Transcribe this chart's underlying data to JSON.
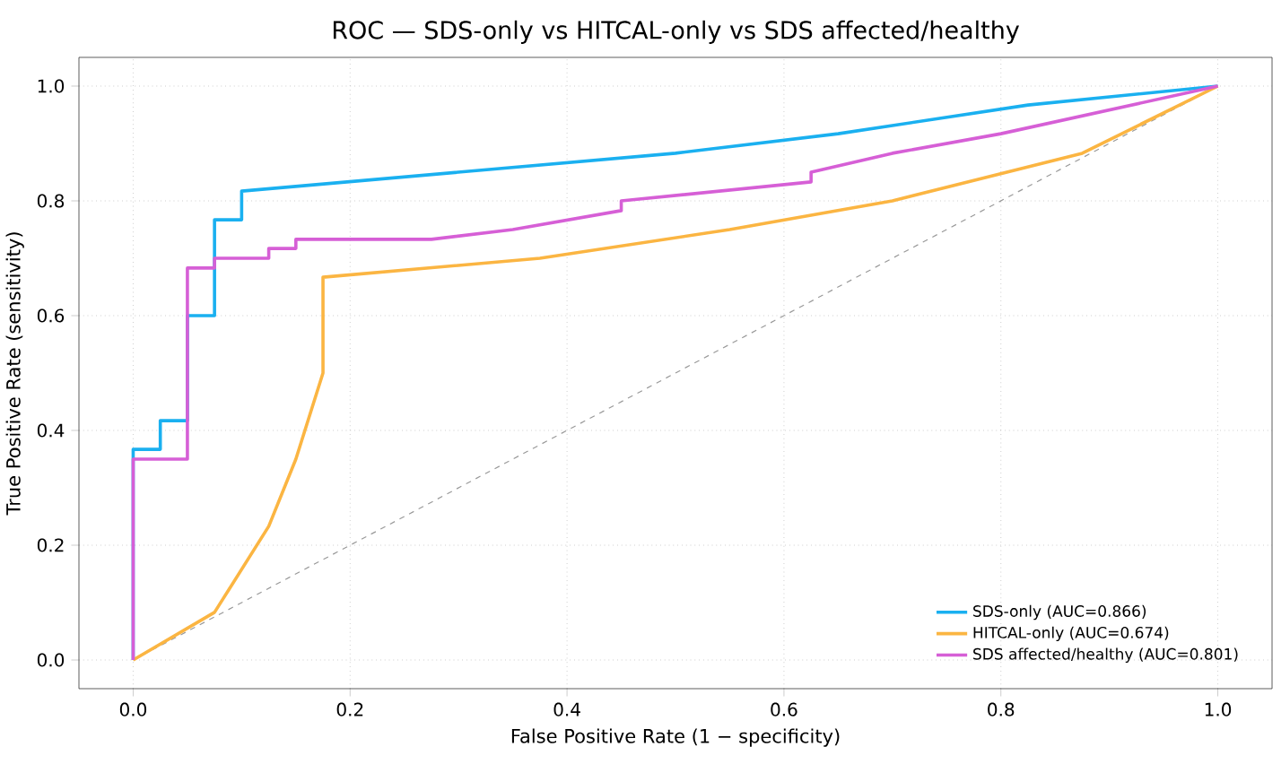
{
  "chart_data": {
    "type": "line",
    "title": "ROC — SDS-only vs HITCAL-only vs SDS affected/healthy",
    "xlabel": "False Positive Rate (1 − specificity)",
    "ylabel": "True Positive Rate (sensitivity)",
    "xlim": [
      -0.05,
      1.05
    ],
    "ylim": [
      -0.05,
      1.05
    ],
    "xticks": [
      {
        "value": 0,
        "label": "0.0"
      },
      {
        "value": 0.2,
        "label": "0.2"
      },
      {
        "value": 0.4,
        "label": "0.4"
      },
      {
        "value": 0.6,
        "label": "0.6"
      },
      {
        "value": 0.8,
        "label": "0.8"
      },
      {
        "value": 1,
        "label": "1.0"
      }
    ],
    "yticks": [
      {
        "value": 0,
        "label": "0.0"
      },
      {
        "value": 0.2,
        "label": "0.2"
      },
      {
        "value": 0.4,
        "label": "0.4"
      },
      {
        "value": 0.6,
        "label": "0.6"
      },
      {
        "value": 0.8,
        "label": "0.8"
      },
      {
        "value": 1,
        "label": "1.0"
      }
    ],
    "grid": true,
    "legend": "bottom right",
    "marker": "none",
    "series": [
      {
        "name": "SDS-only (AUC=0.866)",
        "color": "#1ab0f0",
        "line_style": "solid",
        "x": [
          0,
          0,
          0.025,
          0.025,
          0.05,
          0.05,
          0.075,
          0.075,
          0.1,
          0.1,
          0.5,
          0.65,
          0.825,
          1
        ],
        "values": [
          0,
          0.367,
          0.367,
          0.417,
          0.417,
          0.6,
          0.6,
          0.767,
          0.767,
          0.817,
          0.883,
          0.917,
          0.967,
          1
        ]
      },
      {
        "name": "HITCAL-only (AUC=0.674)",
        "color": "#fbb542",
        "line_style": "solid",
        "x": [
          0,
          0.075,
          0.125,
          0.15,
          0.175,
          0.175,
          0.375,
          0.55,
          0.7,
          0.875,
          1
        ],
        "values": [
          0,
          0.083,
          0.233,
          0.35,
          0.5,
          0.667,
          0.7,
          0.75,
          0.8,
          0.883,
          1
        ]
      },
      {
        "name": "SDS affected/healthy (AUC=0.801)",
        "color": "#d65fd6",
        "line_style": "solid",
        "x": [
          0,
          0,
          0.05,
          0.05,
          0.075,
          0.075,
          0.125,
          0.125,
          0.15,
          0.15,
          0.275,
          0.35,
          0.45,
          0.45,
          0.625,
          0.625,
          0.7,
          0.8,
          1
        ],
        "values": [
          0,
          0.35,
          0.35,
          0.683,
          0.683,
          0.7,
          0.7,
          0.717,
          0.717,
          0.733,
          0.733,
          0.75,
          0.783,
          0.8,
          0.833,
          0.85,
          0.883,
          0.917,
          1
        ]
      },
      {
        "color": "#999999",
        "line_style": "dashed",
        "x": [
          0,
          1
        ],
        "values": [
          0,
          1
        ]
      }
    ]
  }
}
